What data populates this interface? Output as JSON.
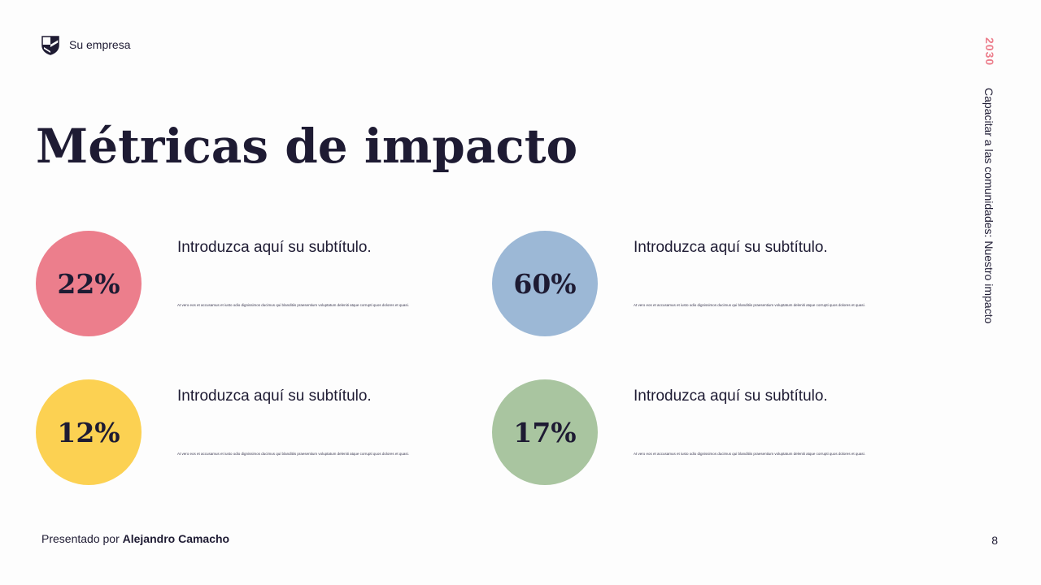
{
  "header": {
    "company": "Su empresa"
  },
  "title": "Métricas de impacto",
  "metrics": [
    {
      "value": "22%",
      "color": "#ec7e8c",
      "subtitle": "Introduzca aquí su subtítulo.",
      "body": "At vero eos et accusamus et iusto odio dignissimos ducimus qui blanditiis praesentium voluptatum deleniti atque corrupti quos dolores et quasi."
    },
    {
      "value": "60%",
      "color": "#9cb8d6",
      "subtitle": "Introduzca aquí su subtítulo.",
      "body": "At vero eos et accusamus et iusto odio dignissimos ducimus qui blanditiis praesentium voluptatum deleniti atque corrupti quos dolores et quasi."
    },
    {
      "value": "12%",
      "color": "#fcd152",
      "subtitle": "Introduzca aquí su subtítulo.",
      "body": "At vero eos et accusamus et iusto odio dignissimos ducimus qui blanditiis praesentium voluptatum deleniti atque corrupti quos dolores et quasi."
    },
    {
      "value": "17%",
      "color": "#a9c5a0",
      "subtitle": "Introduzca aquí su subtítulo.",
      "body": "At vero eos et accusamus et iusto odio dignissimos ducimus qui blanditiis praesentium voluptatum deleniti atque corrupti quos dolores et quasi."
    }
  ],
  "sidebar": {
    "year": "2030",
    "caption": "Capacitar a las comunidades: Nuestro impacto"
  },
  "footer": {
    "presented_by": "Presentado por",
    "presenter": "Alejandro Camacho",
    "page_number": "8"
  },
  "colors": {
    "text": "#1e1b33",
    "accent": "#ec7e8c"
  }
}
